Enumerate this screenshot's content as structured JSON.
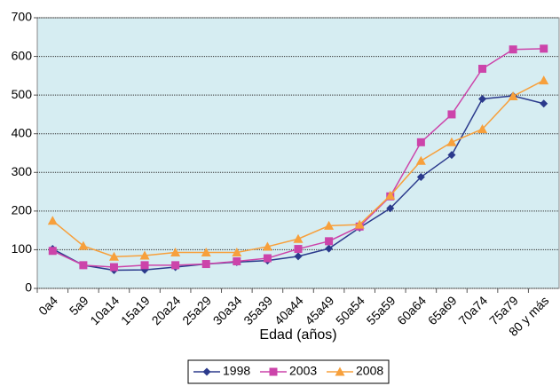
{
  "chart_data": {
    "type": "line",
    "x_label": "Edad (años)",
    "categories": [
      "0a4",
      "5a9",
      "10a14",
      "15a19",
      "20a24",
      "25a29",
      "30a34",
      "35a39",
      "40a44",
      "45a49",
      "50a54",
      "55a59",
      "60a64",
      "65a69",
      "70a74",
      "75a79",
      "80 y más"
    ],
    "series": [
      {
        "name": "1998",
        "color": "#2b3a8c",
        "marker": "diamond",
        "values": [
          102,
          60,
          47,
          48,
          55,
          63,
          68,
          72,
          83,
          103,
          157,
          207,
          288,
          345,
          490,
          498,
          478
        ]
      },
      {
        "name": "2003",
        "color": "#cc44aa",
        "marker": "square",
        "values": [
          97,
          60,
          55,
          60,
          60,
          63,
          70,
          78,
          102,
          122,
          160,
          238,
          378,
          450,
          568,
          618,
          620
        ]
      },
      {
        "name": "2008",
        "color": "#f7a03c",
        "marker": "triangle",
        "values": [
          175,
          110,
          82,
          85,
          93,
          93,
          93,
          108,
          128,
          162,
          165,
          240,
          330,
          378,
          412,
          497,
          538
        ]
      }
    ],
    "ylim": [
      0,
      700
    ],
    "yticks": [
      0,
      100,
      200,
      300,
      400,
      500,
      600,
      700
    ],
    "grid": true,
    "legend": "bottom"
  }
}
